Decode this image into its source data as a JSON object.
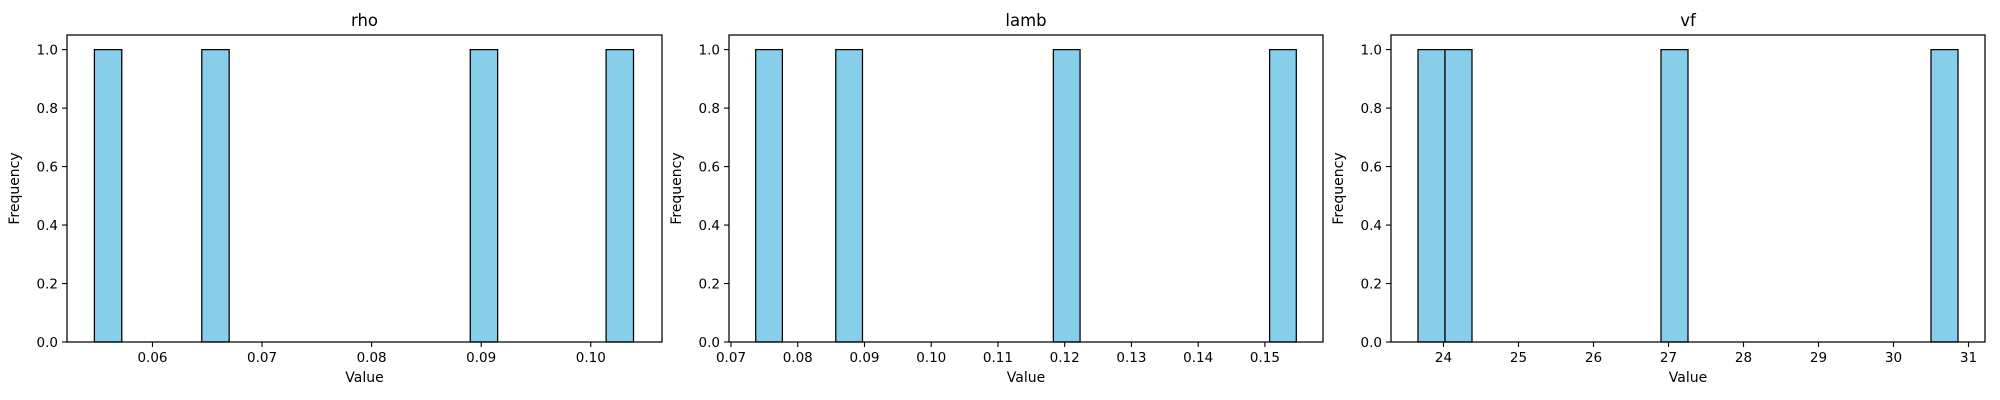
{
  "chart_data": [
    {
      "type": "bar",
      "title": "rho",
      "xlabel": "Value",
      "ylabel": "Frequency",
      "bar_color": "#87ceeb",
      "edge_color": "#000000",
      "xlim": [
        0.0522,
        0.1065
      ],
      "ylim": [
        0,
        1.05
      ],
      "xticks": [
        0.06,
        0.07,
        0.08,
        0.09,
        0.1
      ],
      "xtick_labels": [
        "0.06",
        "0.07",
        "0.08",
        "0.09",
        "0.10"
      ],
      "yticks": [
        0,
        0.2,
        0.4,
        0.6,
        0.8,
        1.0
      ],
      "ytick_labels": [
        "0.0",
        "0.2",
        "0.4",
        "0.6",
        "0.8",
        "1.0"
      ],
      "bars": [
        {
          "x0": 0.0547,
          "x1": 0.0572,
          "count": 1
        },
        {
          "x0": 0.0645,
          "x1": 0.067,
          "count": 1
        },
        {
          "x0": 0.089,
          "x1": 0.0915,
          "count": 1
        },
        {
          "x0": 0.1014,
          "x1": 0.1039,
          "count": 1
        }
      ]
    },
    {
      "type": "bar",
      "title": "lamb",
      "xlabel": "Value",
      "ylabel": "Frequency",
      "bar_color": "#87ceeb",
      "edge_color": "#000000",
      "xlim": [
        0.0697,
        0.1587
      ],
      "ylim": [
        0,
        1.05
      ],
      "xticks": [
        0.07,
        0.08,
        0.09,
        0.1,
        0.11,
        0.12,
        0.13,
        0.14,
        0.15
      ],
      "xtick_labels": [
        "0.07",
        "0.08",
        "0.09",
        "0.10",
        "0.11",
        "0.12",
        "0.13",
        "0.14",
        "0.15"
      ],
      "yticks": [
        0,
        0.2,
        0.4,
        0.6,
        0.8,
        1.0
      ],
      "ytick_labels": [
        "0.0",
        "0.2",
        "0.4",
        "0.6",
        "0.8",
        "1.0"
      ],
      "bars": [
        {
          "x0": 0.0737,
          "x1": 0.0777,
          "count": 1
        },
        {
          "x0": 0.0857,
          "x1": 0.0897,
          "count": 1
        },
        {
          "x0": 0.1183,
          "x1": 0.1223,
          "count": 1
        },
        {
          "x0": 0.1507,
          "x1": 0.1547,
          "count": 1
        }
      ]
    },
    {
      "type": "bar",
      "title": "vf",
      "xlabel": "Value",
      "ylabel": "Frequency",
      "bar_color": "#87ceeb",
      "edge_color": "#000000",
      "xlim": [
        23.3,
        31.22
      ],
      "ylim": [
        0,
        1.05
      ],
      "xticks": [
        24,
        25,
        26,
        27,
        28,
        29,
        30,
        31
      ],
      "xtick_labels": [
        "24",
        "25",
        "26",
        "27",
        "28",
        "29",
        "30",
        "31"
      ],
      "yticks": [
        0,
        0.2,
        0.4,
        0.6,
        0.8,
        1.0
      ],
      "ytick_labels": [
        "0.0",
        "0.2",
        "0.4",
        "0.6",
        "0.8",
        "1.0"
      ],
      "bars": [
        {
          "x0": 23.66,
          "x1": 24.02,
          "count": 1
        },
        {
          "x0": 24.02,
          "x1": 24.38,
          "count": 1
        },
        {
          "x0": 26.9,
          "x1": 27.26,
          "count": 1
        },
        {
          "x0": 30.5,
          "x1": 30.86,
          "count": 1
        }
      ]
    }
  ]
}
